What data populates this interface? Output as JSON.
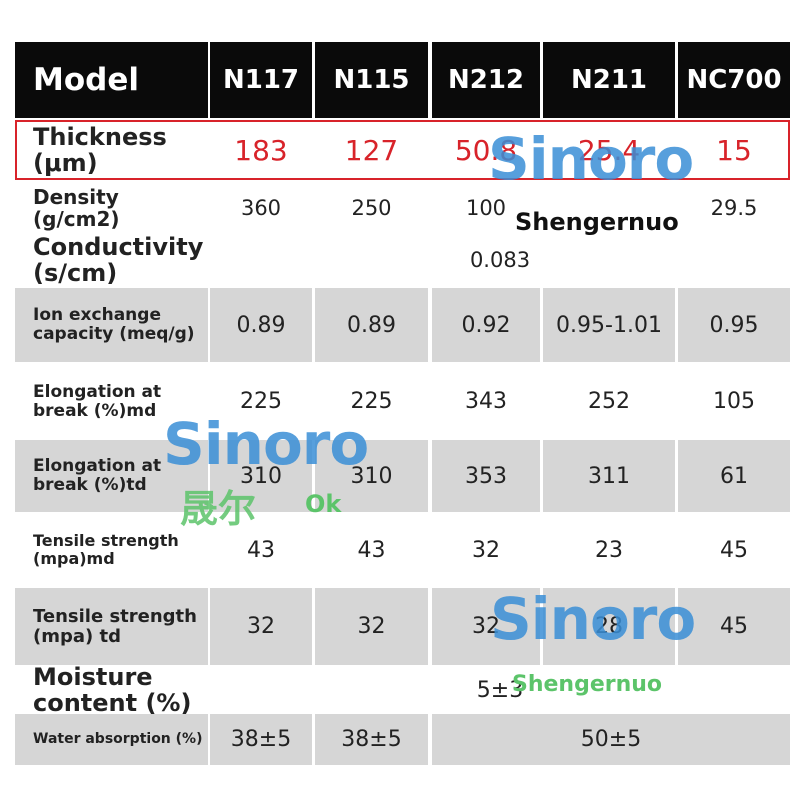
{
  "table": {
    "header": [
      "Model",
      "N117",
      "N115",
      "N212",
      "N211",
      "NC700"
    ],
    "rows": [
      {
        "label": "Thickness (μm)",
        "cells": [
          "183",
          "127",
          "50.8",
          "25.4",
          "15"
        ]
      },
      {
        "label": "Density (g/cm2)",
        "cells": [
          "360",
          "250",
          "100",
          "",
          "29.5"
        ]
      },
      {
        "label": "Conductivity (s/cm)",
        "cells": [
          "0.083"
        ]
      },
      {
        "label": "Ion exchange capacity (meq/g)",
        "cells": [
          "0.89",
          "0.89",
          "0.92",
          "0.95-1.01",
          "0.95"
        ]
      },
      {
        "label": "Elongation at break (%)md",
        "cells": [
          "225",
          "225",
          "343",
          "252",
          "105"
        ]
      },
      {
        "label": "Elongation at break (%)td",
        "cells": [
          "310",
          "310",
          "353",
          "311",
          "61"
        ]
      },
      {
        "label": "Tensile strength (mpa)md",
        "cells": [
          "43",
          "43",
          "32",
          "23",
          "45"
        ]
      },
      {
        "label": "Tensile strength (mpa) td",
        "cells": [
          "32",
          "32",
          "32",
          "28",
          "45"
        ]
      },
      {
        "label": "Moisture content (%)",
        "cells": [
          "5±3"
        ]
      },
      {
        "label": "Water absorption (%)",
        "cells": [
          "38±5",
          "38±5",
          "50±5"
        ]
      }
    ]
  },
  "watermarks": {
    "logo": [
      "Sinoro",
      "Sinoro",
      "Sinoro"
    ],
    "brand": [
      "Shengernuo",
      "Shengernuo"
    ],
    "chinese": "晟尔",
    "ok": "Ok"
  }
}
